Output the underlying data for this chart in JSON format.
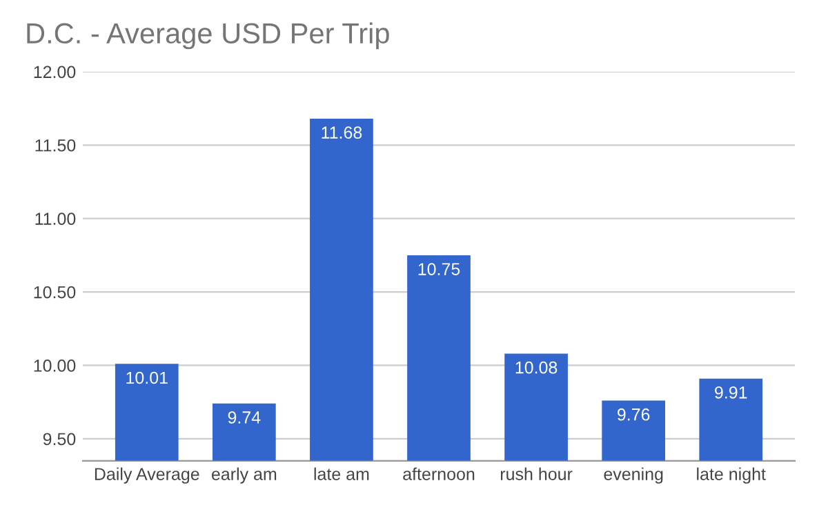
{
  "chart_data": {
    "type": "bar",
    "title": "D.C. - Average USD Per Trip",
    "categories": [
      "Daily Average",
      "early am",
      "late am",
      "afternoon",
      "rush hour",
      "evening",
      "late night"
    ],
    "values": [
      10.01,
      9.74,
      11.68,
      10.75,
      10.08,
      9.76,
      9.91
    ],
    "color": "#3366cc",
    "ylim": [
      9.35,
      12.0
    ],
    "yticks": [
      {
        "value": 9.5,
        "label": "9.50"
      },
      {
        "value": 10.0,
        "label": "10.00"
      },
      {
        "value": 10.5,
        "label": "10.50"
      },
      {
        "value": 11.0,
        "label": "11.00"
      },
      {
        "value": 11.5,
        "label": "11.50"
      },
      {
        "value": 12.0,
        "label": "12.00"
      }
    ],
    "grid": "y",
    "data_labels": true,
    "legend": false
  }
}
